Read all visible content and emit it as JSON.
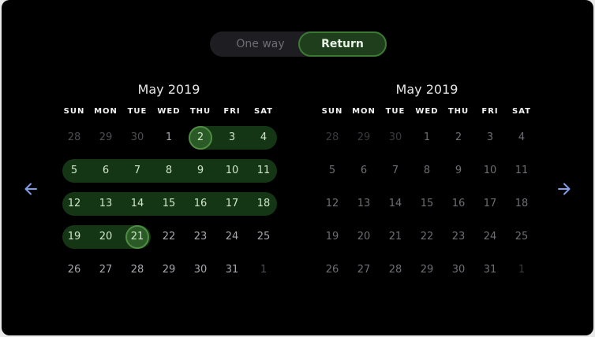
{
  "toggle": {
    "one_way": "One way",
    "return": "Return",
    "selected": "Return"
  },
  "nav": {
    "prev_icon": "arrow-left-icon",
    "next_icon": "arrow-right-icon",
    "arrow_color": "#7e9ee8"
  },
  "colors": {
    "range": "#143614",
    "selected": "#2a5a25",
    "selected_border": "#4f8d44"
  },
  "weekdays": [
    "SUN",
    "MON",
    "TUE",
    "WED",
    "THU",
    "FRI",
    "SAT"
  ],
  "months": [
    {
      "title": "May 2019",
      "weeks": [
        [
          "28",
          "29",
          "30",
          "1",
          "2",
          "3",
          "4"
        ],
        [
          "5",
          "6",
          "7",
          "8",
          "9",
          "10",
          "11"
        ],
        [
          "12",
          "13",
          "14",
          "15",
          "16",
          "17",
          "18"
        ],
        [
          "19",
          "20",
          "21",
          "22",
          "23",
          "24",
          "25"
        ],
        [
          "26",
          "27",
          "28",
          "29",
          "30",
          "31",
          "1"
        ]
      ]
    },
    {
      "title": "May 2019",
      "weeks": [
        [
          "28",
          "29",
          "30",
          "1",
          "2",
          "3",
          "4"
        ],
        [
          "5",
          "6",
          "7",
          "8",
          "9",
          "10",
          "11"
        ],
        [
          "12",
          "13",
          "14",
          "15",
          "16",
          "17",
          "18"
        ],
        [
          "19",
          "20",
          "21",
          "22",
          "23",
          "24",
          "25"
        ],
        [
          "26",
          "27",
          "28",
          "29",
          "30",
          "31",
          "1"
        ]
      ]
    }
  ],
  "selection": {
    "start": "May 2",
    "end": "May 21"
  }
}
